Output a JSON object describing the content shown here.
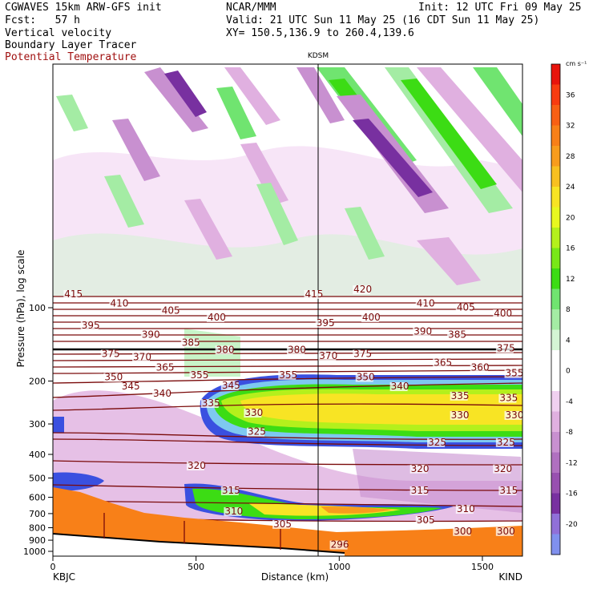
{
  "header": {
    "line1_left": "CGWAVES 15km ARW-GFS init",
    "line1_mid": "NCAR/MMM",
    "line1_right": "Init: 12 UTC Fri 09 May 25",
    "line2_left": "Fcst:   57 h",
    "line2_right": "Valid: 21 UTC Sun 11 May 25 (16 CDT Sun 11 May 25)",
    "line3_left": "Vertical velocity",
    "line3_right": "XY= 150.5,136.9 to 260.4,139.6",
    "line4_left": "Boundary Layer Tracer",
    "line5_left": "Potential Temperature"
  },
  "chart_data": {
    "type": "heatmap",
    "station_marker": "KDSM",
    "station_x_km": 935,
    "xlabel": "Distance (km)",
    "ylabel": "Pressure (hPa), log scale",
    "x_range_km": [
      0,
      1640
    ],
    "x_ticks": [
      0,
      500,
      1000,
      1500
    ],
    "x_end_labels": {
      "left": "KBJC",
      "right": "KIND"
    },
    "y_ticks": [
      100,
      200,
      300,
      400,
      500,
      600,
      700,
      800,
      900,
      1000
    ],
    "colorbar": {
      "unit": "cm s⁻¹",
      "tick_labels": [
        36,
        32,
        28,
        24,
        20,
        16,
        12,
        8,
        4,
        0,
        -4,
        -8,
        -12,
        -16,
        -20
      ],
      "colors": [
        "#e8140c",
        "#f83c10",
        "#f86014",
        "#f88018",
        "#f89c1c",
        "#f8c020",
        "#f8e424",
        "#e8f820",
        "#b4f01c",
        "#78e818",
        "#3cdc14",
        "#70e470",
        "#a4eca4",
        "#d4f4d4",
        "#ffffff",
        "#ffffff",
        "#f0d0f0",
        "#e0b0e0",
        "#c890d0",
        "#b070c0",
        "#9850b0",
        "#7830a0",
        "#9070d8",
        "#8090ee"
      ]
    },
    "theta_contour_labels": [
      {
        "text": "415",
        "x_km": 40,
        "p": 90
      },
      {
        "text": "410",
        "x_km": 200,
        "p": 98
      },
      {
        "text": "405",
        "x_km": 380,
        "p": 105
      },
      {
        "text": "400",
        "x_km": 540,
        "p": 112
      },
      {
        "text": "395",
        "x_km": 100,
        "p": 121
      },
      {
        "text": "390",
        "x_km": 310,
        "p": 132
      },
      {
        "text": "385",
        "x_km": 450,
        "p": 142
      },
      {
        "text": "380",
        "x_km": 570,
        "p": 152
      },
      {
        "text": "375",
        "x_km": 170,
        "p": 158
      },
      {
        "text": "370",
        "x_km": 280,
        "p": 163
      },
      {
        "text": "365",
        "x_km": 360,
        "p": 180
      },
      {
        "text": "355",
        "x_km": 480,
        "p": 193
      },
      {
        "text": "350",
        "x_km": 180,
        "p": 197
      },
      {
        "text": "345",
        "x_km": 240,
        "p": 215
      },
      {
        "text": "340",
        "x_km": 350,
        "p": 230
      },
      {
        "text": "345",
        "x_km": 590,
        "p": 213
      },
      {
        "text": "335",
        "x_km": 520,
        "p": 252
      },
      {
        "text": "330",
        "x_km": 670,
        "p": 276
      },
      {
        "text": "325",
        "x_km": 680,
        "p": 330
      },
      {
        "text": "320",
        "x_km": 470,
        "p": 455
      },
      {
        "text": "315",
        "x_km": 590,
        "p": 575
      },
      {
        "text": "310",
        "x_km": 600,
        "p": 700
      },
      {
        "text": "305",
        "x_km": 770,
        "p": 790
      },
      {
        "text": "415",
        "x_km": 880,
        "p": 90
      },
      {
        "text": "420",
        "x_km": 1050,
        "p": 86
      },
      {
        "text": "410",
        "x_km": 1270,
        "p": 98
      },
      {
        "text": "405",
        "x_km": 1410,
        "p": 102
      },
      {
        "text": "400",
        "x_km": 1540,
        "p": 108
      },
      {
        "text": "395",
        "x_km": 920,
        "p": 118
      },
      {
        "text": "400",
        "x_km": 1080,
        "p": 112
      },
      {
        "text": "390",
        "x_km": 1260,
        "p": 128
      },
      {
        "text": "385",
        "x_km": 1380,
        "p": 132
      },
      {
        "text": "375",
        "x_km": 1550,
        "p": 150
      },
      {
        "text": "380",
        "x_km": 820,
        "p": 152
      },
      {
        "text": "370",
        "x_km": 930,
        "p": 161
      },
      {
        "text": "375",
        "x_km": 1050,
        "p": 158
      },
      {
        "text": "365",
        "x_km": 1330,
        "p": 172
      },
      {
        "text": "360",
        "x_km": 1460,
        "p": 180
      },
      {
        "text": "355",
        "x_km": 1580,
        "p": 190
      },
      {
        "text": "355",
        "x_km": 790,
        "p": 193
      },
      {
        "text": "350",
        "x_km": 1060,
        "p": 197
      },
      {
        "text": "340",
        "x_km": 1180,
        "p": 215
      },
      {
        "text": "335",
        "x_km": 1390,
        "p": 235
      },
      {
        "text": "335",
        "x_km": 1560,
        "p": 240
      },
      {
        "text": "330",
        "x_km": 1390,
        "p": 282
      },
      {
        "text": "330",
        "x_km": 1580,
        "p": 282
      },
      {
        "text": "325",
        "x_km": 1310,
        "p": 365
      },
      {
        "text": "325",
        "x_km": 1550,
        "p": 365
      },
      {
        "text": "320",
        "x_km": 1250,
        "p": 468
      },
      {
        "text": "320",
        "x_km": 1540,
        "p": 468
      },
      {
        "text": "315",
        "x_km": 1250,
        "p": 575
      },
      {
        "text": "315",
        "x_km": 1560,
        "p": 575
      },
      {
        "text": "310",
        "x_km": 1410,
        "p": 685
      },
      {
        "text": "305",
        "x_km": 1270,
        "p": 760
      },
      {
        "text": "300",
        "x_km": 1400,
        "p": 845
      },
      {
        "text": "300",
        "x_km": 1550,
        "p": 845
      },
      {
        "text": "296",
        "x_km": 970,
        "p": 960
      }
    ]
  }
}
